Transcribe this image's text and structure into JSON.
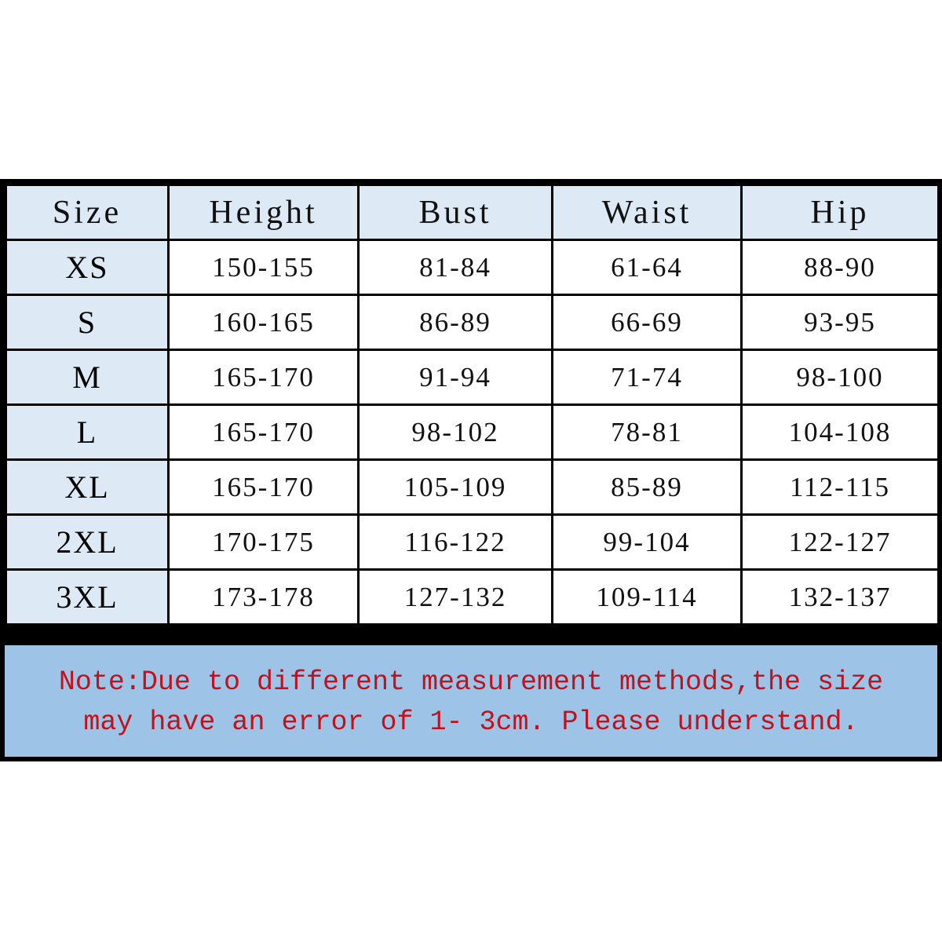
{
  "headers": [
    "Size",
    "Height",
    "Bust",
    "Waist",
    "Hip"
  ],
  "rows": [
    [
      "XS",
      "150-155",
      "81-84",
      "61-64",
      "88-90"
    ],
    [
      "S",
      "160-165",
      "86-89",
      "66-69",
      "93-95"
    ],
    [
      "M",
      "165-170",
      "91-94",
      "71-74",
      "98-100"
    ],
    [
      "L",
      "165-170",
      "98-102",
      "78-81",
      "104-108"
    ],
    [
      "XL",
      "165-170",
      "105-109",
      "85-89",
      "112-115"
    ],
    [
      "2XL",
      "170-175",
      "116-122",
      "99-104",
      "122-127"
    ],
    [
      "3XL",
      "173-178",
      "127-132",
      "109-114",
      "132-137"
    ]
  ],
  "note": {
    "line1": "Note:Due to different measurement methods,the size",
    "line2": "may have an error of 1- 3cm. Please understand."
  },
  "colors": {
    "header_bg": "#dde9f5",
    "note_bg": "#9dc3e6",
    "note_text": "#c0121c",
    "border": "#000000"
  }
}
